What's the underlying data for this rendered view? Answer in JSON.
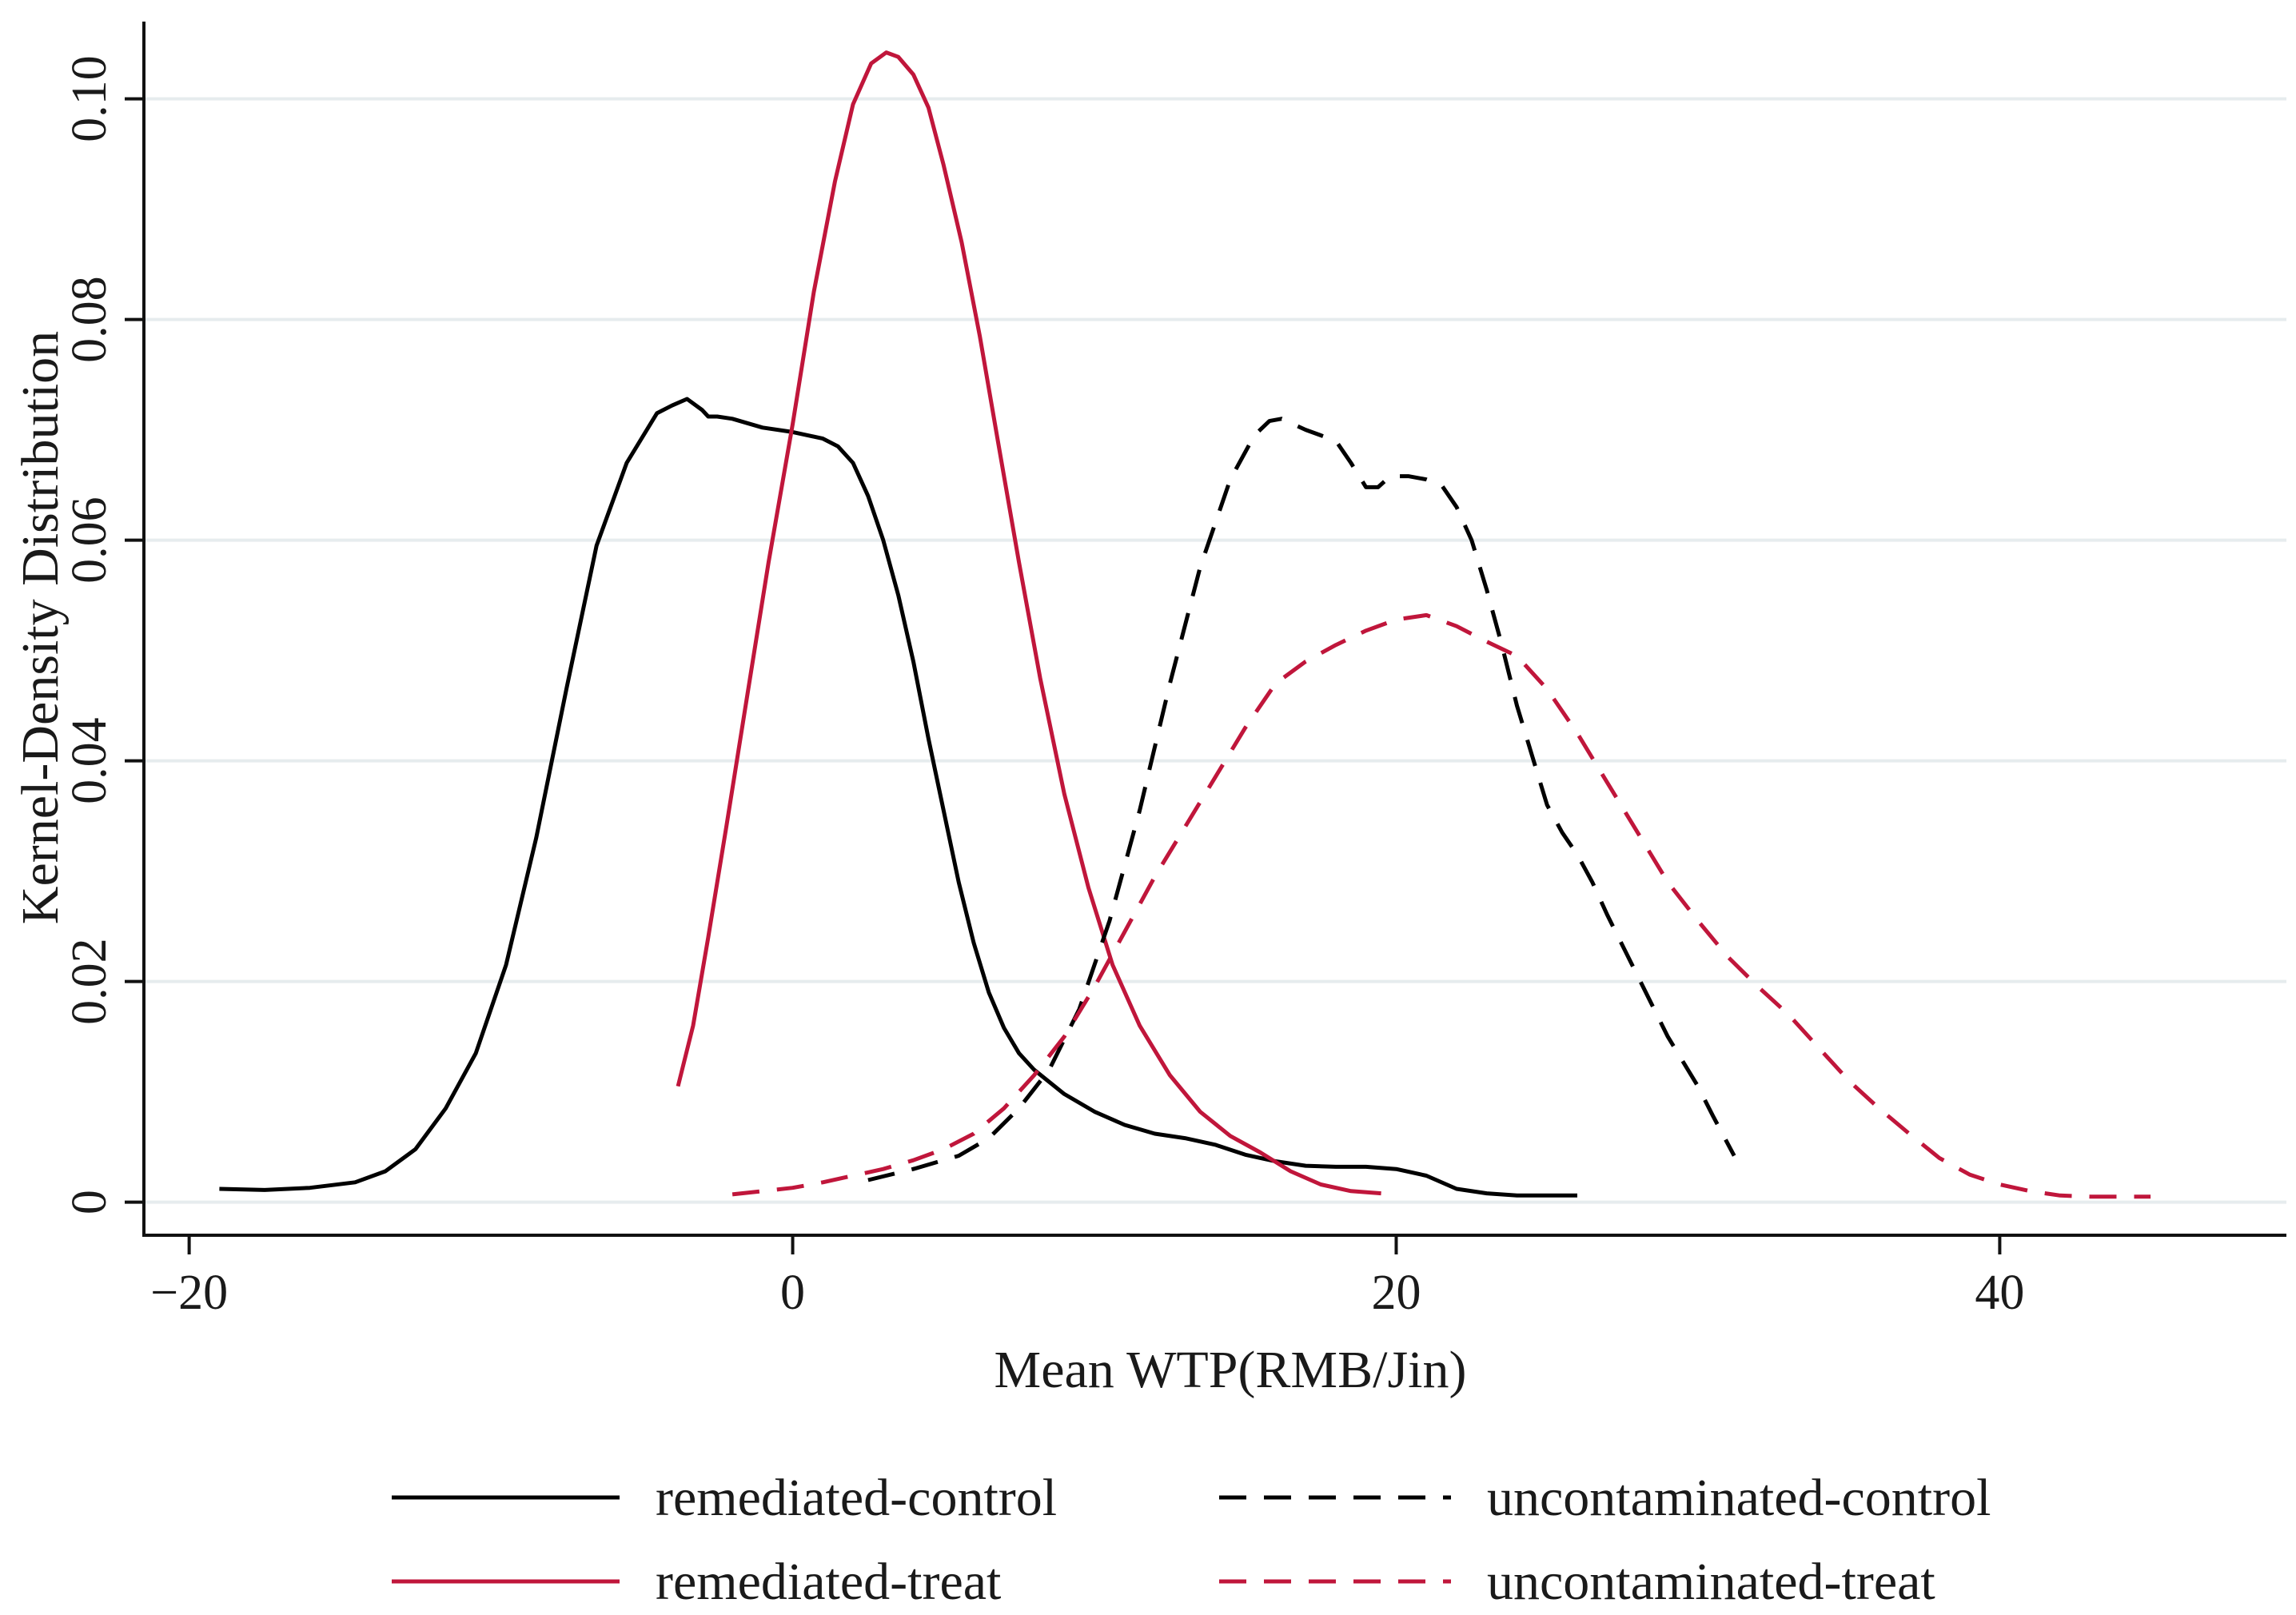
{
  "chart_data": {
    "type": "line",
    "title": "",
    "xlabel": "Mean WTP(RMB/Jin)",
    "ylabel": "Kernel-Density Distribution",
    "xlim": [
      -21.5,
      49.5
    ],
    "ylim": [
      -0.003,
      0.107
    ],
    "xticks": [
      -20,
      0,
      20,
      40
    ],
    "xtick_labels": [
      "−20",
      "0",
      "20",
      "40"
    ],
    "yticks": [
      0,
      0.02,
      0.04,
      0.06,
      0.08,
      0.1
    ],
    "ytick_labels": [
      "0",
      "0.02",
      "0.04",
      "0.06",
      "0.08",
      "0.10"
    ],
    "grid": true,
    "legend_position": "bottom",
    "series": [
      {
        "name": "remediated-control",
        "color": "#000000",
        "dash": "solid",
        "x": [
          -19,
          -17.5,
          -16,
          -14.5,
          -13.5,
          -12.5,
          -11.5,
          -10.5,
          -9.5,
          -8.5,
          -7.5,
          -6.5,
          -5.5,
          -4.5,
          -4,
          -3.5,
          -3,
          -2.8,
          -2.5,
          -2,
          -1.5,
          -1,
          0,
          1,
          1.5,
          2,
          2.5,
          3,
          3.5,
          4,
          4.5,
          5,
          5.5,
          6,
          6.5,
          7,
          7.5,
          8,
          9,
          10,
          11,
          12,
          13,
          14,
          15,
          16,
          17,
          18,
          19,
          20,
          21,
          22,
          23,
          24,
          25,
          26
        ],
        "y": [
          0.0012,
          0.0011,
          0.0013,
          0.0018,
          0.0028,
          0.0048,
          0.0085,
          0.0135,
          0.0215,
          0.033,
          0.0465,
          0.0595,
          0.067,
          0.0715,
          0.0722,
          0.0728,
          0.0718,
          0.0712,
          0.0712,
          0.071,
          0.0706,
          0.0702,
          0.0698,
          0.0692,
          0.0685,
          0.067,
          0.064,
          0.06,
          0.055,
          0.049,
          0.042,
          0.0355,
          0.029,
          0.0235,
          0.019,
          0.0158,
          0.0135,
          0.012,
          0.0098,
          0.0082,
          0.007,
          0.0062,
          0.0058,
          0.0052,
          0.0043,
          0.0037,
          0.0033,
          0.0032,
          0.0032,
          0.003,
          0.0024,
          0.0012,
          0.0008,
          0.0006,
          0.0006,
          0.0006
        ]
      },
      {
        "name": "remediated-treat",
        "color": "#c0163b",
        "dash": "solid",
        "x": [
          -3.8,
          -3.3,
          -2.8,
          -2.2,
          -1.5,
          -0.8,
          0,
          0.7,
          1.4,
          2,
          2.6,
          3.1,
          3.5,
          4,
          4.5,
          5,
          5.6,
          6.2,
          6.8,
          7.5,
          8.2,
          9,
          9.8,
          10.6,
          11.5,
          12.5,
          13.5,
          14.5,
          15.5,
          16.5,
          17.5,
          18.5,
          19.5
        ],
        "y": [
          0.0105,
          0.016,
          0.024,
          0.034,
          0.046,
          0.058,
          0.0705,
          0.0825,
          0.0925,
          0.0995,
          0.1032,
          0.1042,
          0.1038,
          0.1022,
          0.0992,
          0.094,
          0.087,
          0.0785,
          0.069,
          0.058,
          0.0475,
          0.037,
          0.0285,
          0.0215,
          0.016,
          0.0115,
          0.0082,
          0.006,
          0.0045,
          0.0028,
          0.0016,
          0.001,
          0.0008
        ]
      },
      {
        "name": "uncontaminated-control",
        "color": "#000000",
        "dash": "dashed",
        "x": [
          2.5,
          4,
          5.5,
          6.5,
          7.5,
          8.5,
          9.5,
          10.5,
          11.5,
          12.5,
          13.5,
          14.5,
          15.3,
          15.8,
          16.2,
          16.6,
          17,
          17.5,
          18,
          18.5,
          19,
          19.4,
          19.8,
          20.4,
          21,
          21.5,
          22,
          22.5,
          23,
          23.5,
          24,
          24.5,
          25,
          25.5,
          26,
          26.5,
          27,
          28,
          29,
          30,
          30.5,
          31.2
        ],
        "y": [
          0.002,
          0.003,
          0.0042,
          0.0058,
          0.0085,
          0.012,
          0.0175,
          0.0255,
          0.0355,
          0.047,
          0.0575,
          0.0655,
          0.0695,
          0.0708,
          0.071,
          0.0705,
          0.07,
          0.0695,
          0.069,
          0.067,
          0.0648,
          0.0648,
          0.0658,
          0.0658,
          0.0655,
          0.065,
          0.063,
          0.06,
          0.0555,
          0.0505,
          0.045,
          0.0405,
          0.036,
          0.0335,
          0.0315,
          0.029,
          0.026,
          0.0205,
          0.015,
          0.0105,
          0.0078,
          0.0042
        ]
      },
      {
        "name": "uncontaminated-treat",
        "color": "#c0163b",
        "dash": "dashed",
        "x": [
          -2,
          -1,
          0,
          1,
          2,
          3,
          4,
          5,
          6,
          7,
          8,
          9,
          10,
          11,
          12,
          13,
          14,
          15,
          16,
          17,
          18,
          19,
          20,
          21,
          22,
          23,
          24,
          25,
          26,
          27,
          28,
          29,
          30,
          31,
          32,
          33,
          34,
          35,
          36,
          37,
          38,
          39,
          40,
          41,
          42,
          43,
          44,
          45
        ],
        "y": [
          0.0007,
          0.001,
          0.0013,
          0.0018,
          0.0024,
          0.003,
          0.0038,
          0.0048,
          0.0062,
          0.0085,
          0.0115,
          0.015,
          0.0195,
          0.0245,
          0.0295,
          0.034,
          0.0385,
          0.043,
          0.047,
          0.049,
          0.0505,
          0.0518,
          0.0528,
          0.0532,
          0.0522,
          0.0508,
          0.0495,
          0.0465,
          0.0425,
          0.038,
          0.0335,
          0.029,
          0.0255,
          0.0222,
          0.0195,
          0.017,
          0.014,
          0.011,
          0.0085,
          0.0062,
          0.004,
          0.0025,
          0.0016,
          0.001,
          0.0006,
          0.0005,
          0.0005,
          0.0005
        ]
      }
    ]
  }
}
